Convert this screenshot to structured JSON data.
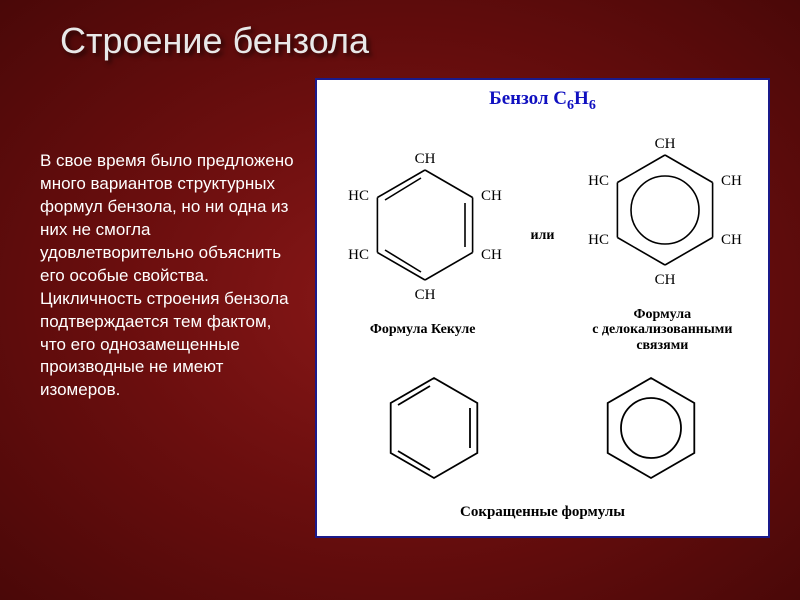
{
  "slide": {
    "title": "Строение  бензола",
    "body": "В свое  время было предложено много вариантов структурных формул бензола, но ни одна из них не смогла удовлетворительно объяснить его особые свойства.\nЦикличность  строения бензола  подтверждается тем  фактом, что его однозамещенные производные не   имеют изомеров."
  },
  "diagram": {
    "title_prefix": "Бензол C",
    "title_sub1": "6",
    "title_mid": "H",
    "title_sub2": "6",
    "or_label": "или",
    "kekule_caption": "Формула Кекуле",
    "deloc_caption_l1": "Формула",
    "deloc_caption_l2": "с делокализованными",
    "deloc_caption_l3": "связями",
    "short_caption": "Сокращенные формулы",
    "colors": {
      "panel_border": "#1a1a8a",
      "panel_bg": "#ffffff",
      "title_color": "#1010c0",
      "bond_color": "#000000",
      "label_top": "CH",
      "label_hc": "HC",
      "label_ch": "CH"
    },
    "hexagon": {
      "r_outer": 60,
      "r_inner_circle": 34,
      "bond_width": 1.6
    }
  },
  "style": {
    "bg_center": "#8a1818",
    "bg_edge": "#4a0808",
    "title_color": "#e8e8e8",
    "text_color": "#ffffff",
    "title_fontsize": 36,
    "body_fontsize": 17
  }
}
